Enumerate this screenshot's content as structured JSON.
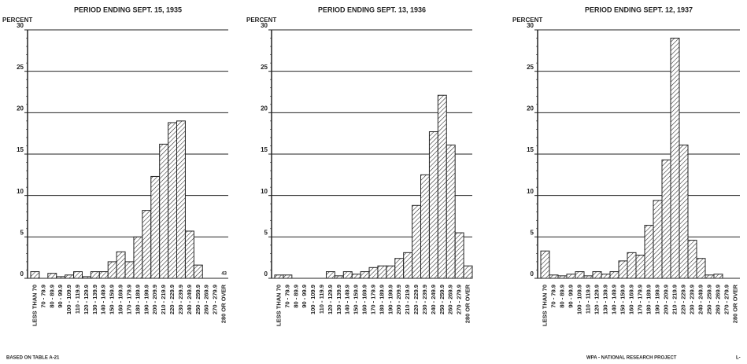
{
  "chart_data": [
    {
      "type": "bar",
      "title": "PERIOD ENDING SEPT. 15, 1935",
      "y_label": "PERCENT",
      "categories": [
        "LESS THAN 70",
        "70 - 79.9",
        "80 - 89.9",
        "90 - 99.9",
        "100 - 109.9",
        "110 - 119.9",
        "120 - 129.9",
        "130 - 139.9",
        "140 - 149.9",
        "150 - 159.9",
        "160 - 169.9",
        "170 - 179.9",
        "180 - 189.9",
        "190 - 199.9",
        "200 - 209.9",
        "210 - 219.9",
        "220 - 229.9",
        "230 - 239.9",
        "240 - 249.9",
        "250 - 259.9",
        "260 - 269.9",
        "270 - 279.9",
        "280 OR OVER"
      ],
      "values": [
        0.8,
        0,
        0.6,
        0.2,
        0.4,
        0.8,
        0.2,
        0.8,
        0.8,
        2.0,
        3.2,
        2.0,
        5.0,
        8.2,
        12.3,
        16.2,
        18.8,
        19.0,
        5.7,
        1.6,
        0,
        0,
        0
      ],
      "annotation": "43",
      "color": "#222222",
      "ylim": [
        0,
        30
      ],
      "yticks": [
        0,
        5,
        10,
        15,
        20,
        25,
        30
      ],
      "grid": true
    },
    {
      "type": "bar",
      "title": "PERIOD ENDING SEPT. 13, 1936",
      "y_label": "PERCENT",
      "categories": [
        "LESS THAN 70",
        "70 - 79.9",
        "80 - 89.9",
        "90 - 99.9",
        "100 - 109.9",
        "110 - 119.9",
        "120 - 129.9",
        "130 - 139.9",
        "140 - 149.9",
        "150 - 159.9",
        "160 - 169.9",
        "170 - 179.9",
        "180 - 189.9",
        "190 - 199.9",
        "200 - 209.9",
        "210 - 219.9",
        "220 - 229.9",
        "230 - 239.9",
        "240 - 249.9",
        "250 - 259.9",
        "260 - 269.9",
        "270 - 279.9",
        "280 OR OVER"
      ],
      "values": [
        0.4,
        0.4,
        0,
        0,
        0,
        0,
        0.8,
        0.3,
        0.8,
        0.5,
        0.8,
        1.3,
        1.5,
        1.5,
        2.4,
        3.1,
        8.8,
        12.5,
        17.7,
        22.1,
        16.1,
        5.5,
        1.5
      ],
      "color": "#222222",
      "ylim": [
        0,
        30
      ],
      "yticks": [
        0,
        5,
        10,
        15,
        20,
        25,
        30
      ],
      "grid": true
    },
    {
      "type": "bar",
      "title": "PERIOD ENDING SEPT. 12, 1937",
      "y_label": "PERCENT",
      "categories": [
        "LESS THAN 70",
        "70 - 79.9",
        "80 - 89.9",
        "90 - 99.9",
        "100 - 109.9",
        "110 - 119.9",
        "120 - 129.9",
        "130 - 139.9",
        "140 - 149.9",
        "150 - 159.9",
        "160 - 169.9",
        "170 - 179.9",
        "180 - 189.9",
        "190 - 199.9",
        "200 - 209.9",
        "210 - 219.9",
        "220 - 229.9",
        "230 - 239.9",
        "240 - 249.9",
        "250 - 259.9",
        "260 - 269.9",
        "270 - 279.9",
        "280 OR OVER"
      ],
      "values": [
        3.3,
        0.4,
        0.3,
        0.5,
        0.8,
        0.3,
        0.8,
        0.5,
        0.8,
        2.1,
        3.1,
        2.8,
        6.4,
        9.4,
        14.3,
        29.0,
        16.1,
        4.6,
        2.4,
        0.4,
        0.5,
        0,
        0
      ],
      "color": "#222222",
      "ylim": [
        0,
        30
      ],
      "yticks": [
        0,
        5,
        10,
        15,
        20,
        25,
        30
      ],
      "grid": true
    }
  ],
  "footer": {
    "left": "BASED ON TABLE A-21",
    "right": "WPA - NATIONAL RESEARCH PROJECT",
    "code": "L-"
  }
}
